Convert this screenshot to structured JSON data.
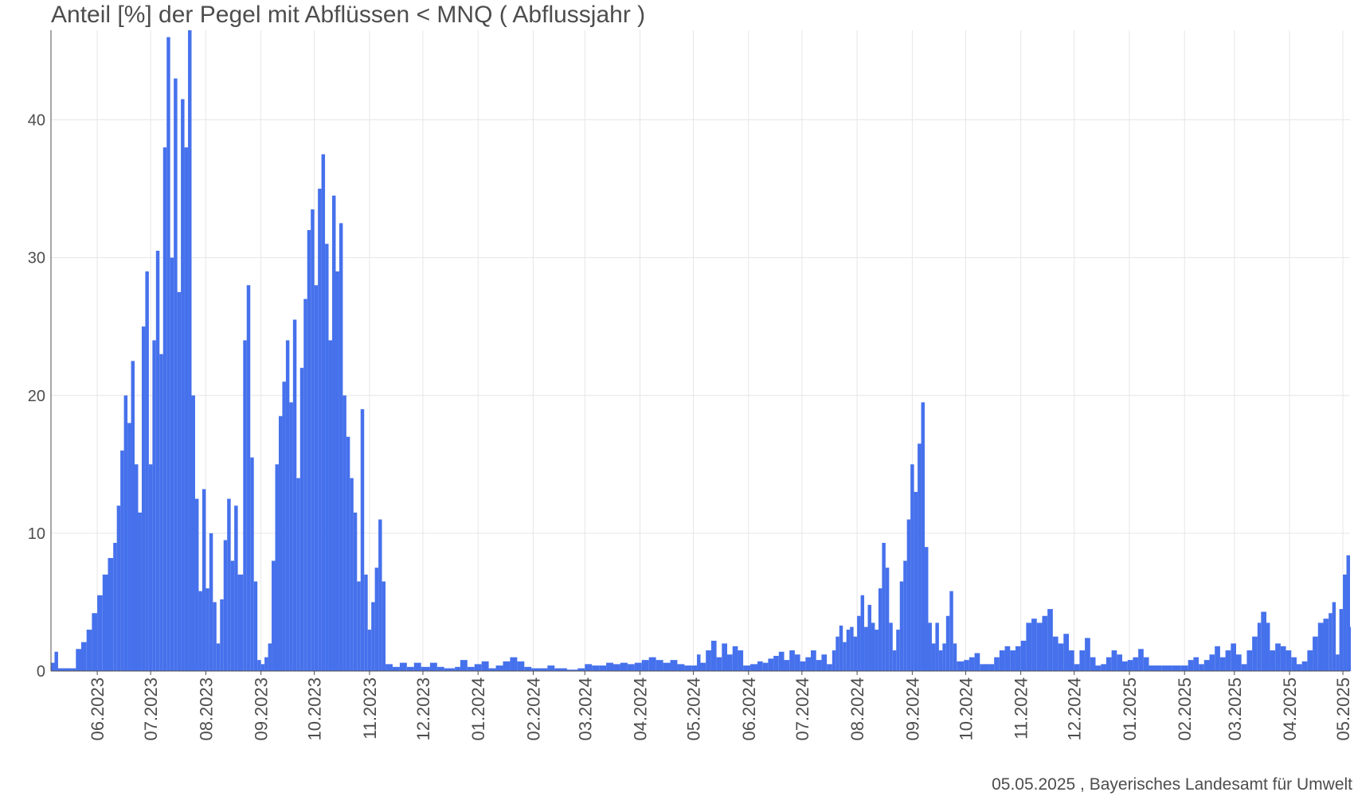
{
  "chart_data": {
    "type": "bar",
    "title": "Anteil [%] der Pegel mit Abflüssen < MNQ ( Abflussjahr )",
    "xlabel": "",
    "ylabel": "",
    "ylim": [
      0,
      46.5
    ],
    "yticks": [
      0,
      10,
      20,
      30,
      40
    ],
    "grid": true,
    "bar_color": "#4671ec",
    "x_range": [
      "2023-05-06",
      "2025-05-05"
    ],
    "x_ticks": [
      {
        "date": "2023-06-01",
        "label": "06.2023"
      },
      {
        "date": "2023-07-01",
        "label": "07.2023"
      },
      {
        "date": "2023-08-01",
        "label": "08.2023"
      },
      {
        "date": "2023-09-01",
        "label": "09.2023"
      },
      {
        "date": "2023-10-01",
        "label": "10.2023"
      },
      {
        "date": "2023-11-01",
        "label": "11.2023"
      },
      {
        "date": "2023-12-01",
        "label": "12.2023"
      },
      {
        "date": "2024-01-01",
        "label": "01.2024"
      },
      {
        "date": "2024-02-01",
        "label": "02.2024"
      },
      {
        "date": "2024-03-01",
        "label": "03.2024"
      },
      {
        "date": "2024-04-01",
        "label": "04.2024"
      },
      {
        "date": "2024-05-01",
        "label": "05.2024"
      },
      {
        "date": "2024-06-01",
        "label": "06.2024"
      },
      {
        "date": "2024-07-01",
        "label": "07.2024"
      },
      {
        "date": "2024-08-01",
        "label": "08.2024"
      },
      {
        "date": "2024-09-01",
        "label": "09.2024"
      },
      {
        "date": "2024-10-01",
        "label": "10.2024"
      },
      {
        "date": "2024-11-01",
        "label": "11.2024"
      },
      {
        "date": "2024-12-01",
        "label": "12.2024"
      },
      {
        "date": "2025-01-01",
        "label": "01.2025"
      },
      {
        "date": "2025-02-01",
        "label": "02.2025"
      },
      {
        "date": "2025-03-01",
        "label": "03.2025"
      },
      {
        "date": "2025-04-01",
        "label": "04.2025"
      },
      {
        "date": "2025-05-01",
        "label": "05.2025"
      }
    ],
    "series": [
      {
        "values": [
          [
            "2023-05-06",
            0.6
          ],
          [
            "2023-05-08",
            1.4
          ],
          [
            "2023-05-10",
            0.2
          ],
          [
            "2023-05-18",
            0.2
          ],
          [
            "2023-05-20",
            1.6
          ],
          [
            "2023-05-23",
            2.1
          ],
          [
            "2023-05-26",
            3
          ],
          [
            "2023-05-29",
            4.2
          ],
          [
            "2023-06-01",
            5.5
          ],
          [
            "2023-06-04",
            7
          ],
          [
            "2023-06-07",
            8.2
          ],
          [
            "2023-06-10",
            9.3
          ],
          [
            "2023-06-12",
            12
          ],
          [
            "2023-06-14",
            16
          ],
          [
            "2023-06-16",
            20
          ],
          [
            "2023-06-18",
            18
          ],
          [
            "2023-06-20",
            22.5
          ],
          [
            "2023-06-22",
            15
          ],
          [
            "2023-06-24",
            11.5
          ],
          [
            "2023-06-26",
            25
          ],
          [
            "2023-06-28",
            29
          ],
          [
            "2023-06-30",
            15
          ],
          [
            "2023-07-02",
            24
          ],
          [
            "2023-07-04",
            30.5
          ],
          [
            "2023-07-06",
            23
          ],
          [
            "2023-07-08",
            38
          ],
          [
            "2023-07-10",
            46
          ],
          [
            "2023-07-12",
            30
          ],
          [
            "2023-07-14",
            43
          ],
          [
            "2023-07-16",
            27.5
          ],
          [
            "2023-07-18",
            41.5
          ],
          [
            "2023-07-20",
            38
          ],
          [
            "2023-07-22",
            46.5
          ],
          [
            "2023-07-24",
            20
          ],
          [
            "2023-07-26",
            12.5
          ],
          [
            "2023-07-28",
            5.8
          ],
          [
            "2023-07-30",
            13.2
          ],
          [
            "2023-08-01",
            6
          ],
          [
            "2023-08-03",
            10
          ],
          [
            "2023-08-05",
            5
          ],
          [
            "2023-08-07",
            2
          ],
          [
            "2023-08-09",
            5.2
          ],
          [
            "2023-08-11",
            9.5
          ],
          [
            "2023-08-13",
            12.5
          ],
          [
            "2023-08-15",
            8
          ],
          [
            "2023-08-17",
            12
          ],
          [
            "2023-08-19",
            7
          ],
          [
            "2023-08-22",
            24
          ],
          [
            "2023-08-24",
            28
          ],
          [
            "2023-08-26",
            15.5
          ],
          [
            "2023-08-28",
            6.5
          ],
          [
            "2023-08-30",
            0.8
          ],
          [
            "2023-09-01",
            0.5
          ],
          [
            "2023-09-03",
            1
          ],
          [
            "2023-09-05",
            2
          ],
          [
            "2023-09-07",
            8
          ],
          [
            "2023-09-09",
            15
          ],
          [
            "2023-09-11",
            18.5
          ],
          [
            "2023-09-13",
            21
          ],
          [
            "2023-09-15",
            24
          ],
          [
            "2023-09-17",
            19.5
          ],
          [
            "2023-09-19",
            25.5
          ],
          [
            "2023-09-21",
            14
          ],
          [
            "2023-09-23",
            22
          ],
          [
            "2023-09-25",
            27
          ],
          [
            "2023-09-27",
            32
          ],
          [
            "2023-09-29",
            33.5
          ],
          [
            "2023-10-01",
            28
          ],
          [
            "2023-10-03",
            35
          ],
          [
            "2023-10-05",
            37.5
          ],
          [
            "2023-10-07",
            31
          ],
          [
            "2023-10-09",
            24
          ],
          [
            "2023-10-11",
            34.5
          ],
          [
            "2023-10-13",
            29
          ],
          [
            "2023-10-15",
            32.5
          ],
          [
            "2023-10-17",
            20
          ],
          [
            "2023-10-19",
            17
          ],
          [
            "2023-10-21",
            14
          ],
          [
            "2023-10-23",
            11.5
          ],
          [
            "2023-10-25",
            6.5
          ],
          [
            "2023-10-27",
            19
          ],
          [
            "2023-10-29",
            7
          ],
          [
            "2023-10-31",
            3
          ],
          [
            "2023-11-02",
            5
          ],
          [
            "2023-11-04",
            7.5
          ],
          [
            "2023-11-06",
            11
          ],
          [
            "2023-11-08",
            6.5
          ],
          [
            "2023-11-10",
            0.5
          ],
          [
            "2023-11-14",
            0.3
          ],
          [
            "2023-11-18",
            0.6
          ],
          [
            "2023-11-22",
            0.3
          ],
          [
            "2023-11-26",
            0.6
          ],
          [
            "2023-11-30",
            0.3
          ],
          [
            "2023-12-05",
            0.6
          ],
          [
            "2023-12-09",
            0.3
          ],
          [
            "2023-12-13",
            0.2
          ],
          [
            "2023-12-19",
            0.3
          ],
          [
            "2023-12-22",
            0.8
          ],
          [
            "2023-12-26",
            0.3
          ],
          [
            "2023-12-30",
            0.5
          ],
          [
            "2024-01-03",
            0.7
          ],
          [
            "2024-01-07",
            0.2
          ],
          [
            "2024-01-11",
            0.4
          ],
          [
            "2024-01-15",
            0.7
          ],
          [
            "2024-01-19",
            1
          ],
          [
            "2024-01-23",
            0.7
          ],
          [
            "2024-01-27",
            0.3
          ],
          [
            "2024-01-31",
            0.2
          ],
          [
            "2024-02-05",
            0.2
          ],
          [
            "2024-02-09",
            0.4
          ],
          [
            "2024-02-13",
            0.2
          ],
          [
            "2024-02-20",
            0.1
          ],
          [
            "2024-02-26",
            0.2
          ],
          [
            "2024-03-01",
            0.5
          ],
          [
            "2024-03-05",
            0.4
          ],
          [
            "2024-03-09",
            0.4
          ],
          [
            "2024-03-13",
            0.6
          ],
          [
            "2024-03-17",
            0.5
          ],
          [
            "2024-03-21",
            0.6
          ],
          [
            "2024-03-25",
            0.5
          ],
          [
            "2024-03-29",
            0.6
          ],
          [
            "2024-04-02",
            0.8
          ],
          [
            "2024-04-06",
            1
          ],
          [
            "2024-04-10",
            0.8
          ],
          [
            "2024-04-14",
            0.6
          ],
          [
            "2024-04-18",
            0.8
          ],
          [
            "2024-04-22",
            0.5
          ],
          [
            "2024-04-26",
            0.4
          ],
          [
            "2024-04-30",
            0.4
          ],
          [
            "2024-05-03",
            1.2
          ],
          [
            "2024-05-05",
            0.6
          ],
          [
            "2024-05-08",
            1.5
          ],
          [
            "2024-05-11",
            2.2
          ],
          [
            "2024-05-14",
            1
          ],
          [
            "2024-05-17",
            2
          ],
          [
            "2024-05-20",
            1.2
          ],
          [
            "2024-05-23",
            1.8
          ],
          [
            "2024-05-26",
            1.5
          ],
          [
            "2024-05-29",
            0.4
          ],
          [
            "2024-06-02",
            0.5
          ],
          [
            "2024-06-06",
            0.7
          ],
          [
            "2024-06-09",
            0.6
          ],
          [
            "2024-06-12",
            0.9
          ],
          [
            "2024-06-15",
            1.1
          ],
          [
            "2024-06-18",
            1.4
          ],
          [
            "2024-06-21",
            0.8
          ],
          [
            "2024-06-24",
            1.5
          ],
          [
            "2024-06-27",
            1.2
          ],
          [
            "2024-06-30",
            0.7
          ],
          [
            "2024-07-03",
            1
          ],
          [
            "2024-07-06",
            1.5
          ],
          [
            "2024-07-09",
            0.8
          ],
          [
            "2024-07-12",
            1.2
          ],
          [
            "2024-07-15",
            0.5
          ],
          [
            "2024-07-18",
            1.5
          ],
          [
            "2024-07-20",
            2.5
          ],
          [
            "2024-07-22",
            3.3
          ],
          [
            "2024-07-24",
            2.1
          ],
          [
            "2024-07-26",
            3
          ],
          [
            "2024-07-28",
            3.2
          ],
          [
            "2024-07-30",
            2.5
          ],
          [
            "2024-08-01",
            4
          ],
          [
            "2024-08-03",
            5.5
          ],
          [
            "2024-08-05",
            3.2
          ],
          [
            "2024-08-07",
            4.8
          ],
          [
            "2024-08-09",
            3.5
          ],
          [
            "2024-08-11",
            3
          ],
          [
            "2024-08-13",
            6
          ],
          [
            "2024-08-15",
            9.3
          ],
          [
            "2024-08-17",
            7.5
          ],
          [
            "2024-08-19",
            3.5
          ],
          [
            "2024-08-21",
            1.5
          ],
          [
            "2024-08-23",
            3
          ],
          [
            "2024-08-25",
            6.5
          ],
          [
            "2024-08-27",
            8
          ],
          [
            "2024-08-29",
            11
          ],
          [
            "2024-08-31",
            15
          ],
          [
            "2024-09-02",
            13
          ],
          [
            "2024-09-04",
            16.5
          ],
          [
            "2024-09-06",
            19.5
          ],
          [
            "2024-09-08",
            9
          ],
          [
            "2024-09-10",
            3.5
          ],
          [
            "2024-09-12",
            2
          ],
          [
            "2024-09-14",
            3.5
          ],
          [
            "2024-09-16",
            1.5
          ],
          [
            "2024-09-18",
            2
          ],
          [
            "2024-09-20",
            4
          ],
          [
            "2024-09-22",
            5.8
          ],
          [
            "2024-09-24",
            2
          ],
          [
            "2024-09-26",
            0.7
          ],
          [
            "2024-09-30",
            0.8
          ],
          [
            "2024-10-03",
            1
          ],
          [
            "2024-10-06",
            1.3
          ],
          [
            "2024-10-09",
            0.5
          ],
          [
            "2024-10-14",
            0.5
          ],
          [
            "2024-10-17",
            1
          ],
          [
            "2024-10-20",
            1.5
          ],
          [
            "2024-10-23",
            1.8
          ],
          [
            "2024-10-26",
            1.5
          ],
          [
            "2024-10-29",
            1.8
          ],
          [
            "2024-11-01",
            2.2
          ],
          [
            "2024-11-04",
            3.5
          ],
          [
            "2024-11-07",
            3.8
          ],
          [
            "2024-11-10",
            3.5
          ],
          [
            "2024-11-13",
            4
          ],
          [
            "2024-11-16",
            4.5
          ],
          [
            "2024-11-19",
            2.5
          ],
          [
            "2024-11-22",
            2
          ],
          [
            "2024-11-25",
            2.7
          ],
          [
            "2024-11-28",
            1.5
          ],
          [
            "2024-12-01",
            0.5
          ],
          [
            "2024-12-04",
            1.5
          ],
          [
            "2024-12-07",
            2.4
          ],
          [
            "2024-12-10",
            1
          ],
          [
            "2024-12-13",
            0.4
          ],
          [
            "2024-12-16",
            0.5
          ],
          [
            "2024-12-19",
            1
          ],
          [
            "2024-12-22",
            1.5
          ],
          [
            "2024-12-25",
            1.2
          ],
          [
            "2024-12-28",
            0.7
          ],
          [
            "2024-12-31",
            0.8
          ],
          [
            "2025-01-03",
            1
          ],
          [
            "2025-01-06",
            1.6
          ],
          [
            "2025-01-09",
            1
          ],
          [
            "2025-01-12",
            0.4
          ],
          [
            "2025-01-19",
            0.4
          ],
          [
            "2025-01-25",
            0.4
          ],
          [
            "2025-01-30",
            0.4
          ],
          [
            "2025-02-03",
            0.8
          ],
          [
            "2025-02-06",
            1
          ],
          [
            "2025-02-09",
            0.5
          ],
          [
            "2025-02-12",
            0.8
          ],
          [
            "2025-02-15",
            1.2
          ],
          [
            "2025-02-18",
            1.8
          ],
          [
            "2025-02-21",
            1
          ],
          [
            "2025-02-24",
            1.5
          ],
          [
            "2025-02-27",
            2
          ],
          [
            "2025-03-02",
            1.2
          ],
          [
            "2025-03-05",
            0.5
          ],
          [
            "2025-03-08",
            1.5
          ],
          [
            "2025-03-11",
            2.5
          ],
          [
            "2025-03-14",
            3.5
          ],
          [
            "2025-03-16",
            4.3
          ],
          [
            "2025-03-19",
            3.5
          ],
          [
            "2025-03-21",
            1.5
          ],
          [
            "2025-03-24",
            2
          ],
          [
            "2025-03-27",
            1.8
          ],
          [
            "2025-03-30",
            1.5
          ],
          [
            "2025-04-02",
            1
          ],
          [
            "2025-04-05",
            0.5
          ],
          [
            "2025-04-08",
            0.7
          ],
          [
            "2025-04-11",
            1.5
          ],
          [
            "2025-04-14",
            2.5
          ],
          [
            "2025-04-17",
            3.5
          ],
          [
            "2025-04-20",
            3.8
          ],
          [
            "2025-04-23",
            4.2
          ],
          [
            "2025-04-25",
            5
          ],
          [
            "2025-04-27",
            1.2
          ],
          [
            "2025-04-29",
            4.5
          ],
          [
            "2025-05-01",
            7
          ],
          [
            "2025-05-03",
            8.4
          ],
          [
            "2025-05-05",
            3.2
          ]
        ]
      }
    ]
  },
  "caption": "05.05.2025 , Bayerisches Landesamt für Umwelt"
}
